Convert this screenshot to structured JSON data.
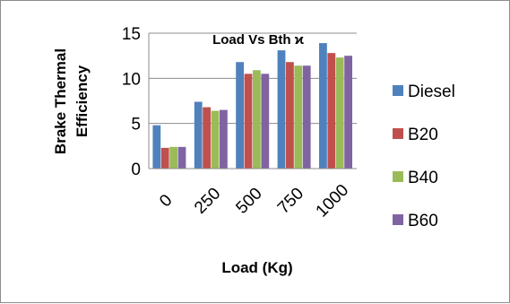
{
  "chart_data": {
    "type": "bar",
    "title": "Load Vs Bth ϰ",
    "xlabel": "Load (Kg)",
    "ylabel": "Brake Thermal Efficiency",
    "categories": [
      "0",
      "250",
      "500",
      "750",
      "1000"
    ],
    "ylim": [
      0,
      15
    ],
    "yticks": [
      "0",
      "5",
      "10",
      "15"
    ],
    "grid": true,
    "legend_position": "right",
    "series": [
      {
        "name": "Diesel",
        "color": "#4f81bd",
        "values": [
          4.8,
          7.4,
          11.8,
          13.1,
          13.9
        ]
      },
      {
        "name": "B20",
        "color": "#c0504d",
        "values": [
          2.3,
          6.8,
          10.5,
          11.8,
          12.8
        ]
      },
      {
        "name": "B40",
        "color": "#9bbb59",
        "values": [
          2.4,
          6.4,
          10.9,
          11.4,
          12.3
        ]
      },
      {
        "name": "B60",
        "color": "#8064a2",
        "values": [
          2.4,
          6.5,
          10.5,
          11.4,
          12.5
        ]
      }
    ]
  }
}
